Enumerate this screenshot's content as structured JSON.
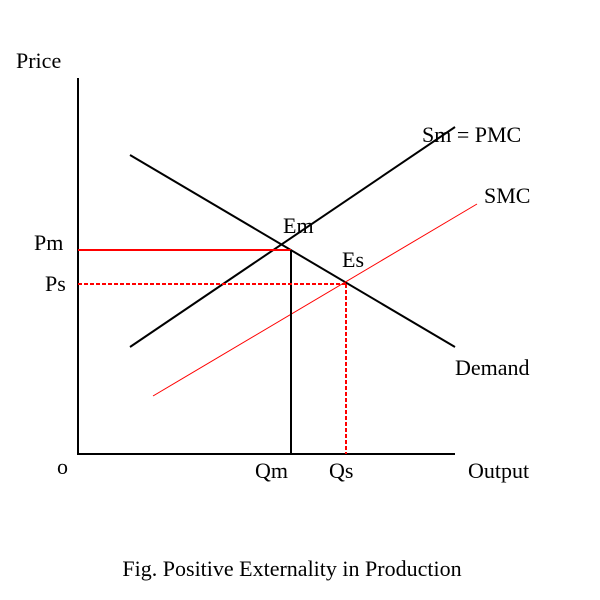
{
  "diagram": {
    "y_axis_label": "Price",
    "x_axis_label": "Output",
    "origin_label": "o",
    "curves": {
      "private_supply": "Sm = PMC",
      "social_supply": "SMC",
      "demand": "Demand"
    },
    "points": {
      "market_equilibrium": "Em",
      "social_equilibrium": "Es"
    },
    "prices": {
      "market": "Pm",
      "social": "Ps"
    },
    "quantities": {
      "market": "Qm",
      "social": "Qs"
    },
    "colors": {
      "axes": "#000000",
      "social": "#ff0000"
    }
  },
  "caption": "Fig. Positive Externality in Production"
}
